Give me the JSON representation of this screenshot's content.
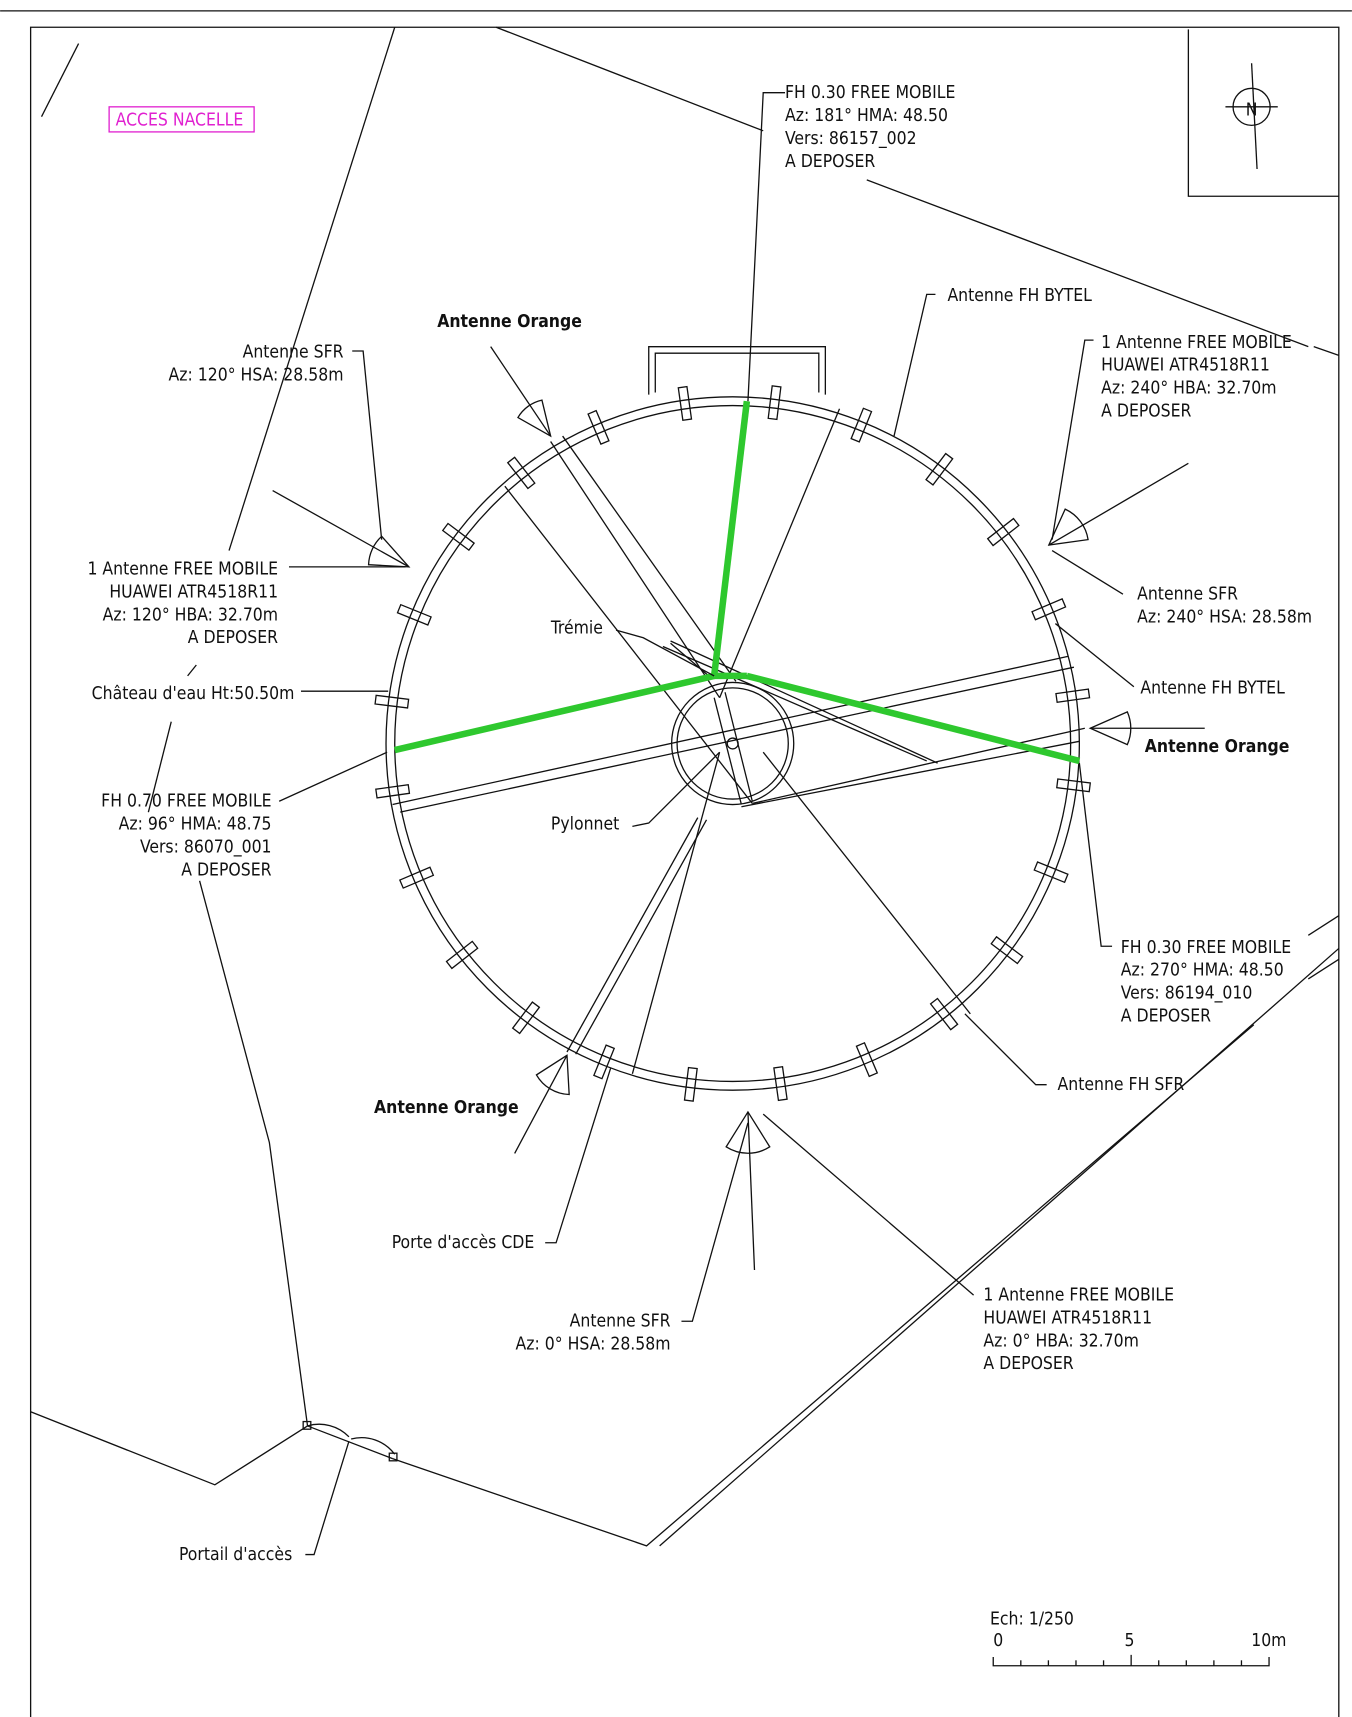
{
  "labels": [
    [
      "ACCES NACELLE"
    ],
    [
      "FH 0.30 FREE MOBILE",
      "Az: 181° HMA: 48.50",
      "Vers: 86157_002",
      "A DEPOSER"
    ],
    [
      "Antenne FH BYTEL"
    ],
    [
      "Antenne Orange"
    ],
    [
      "Antenne SFR",
      "Az: 120° HSA: 28.58m"
    ],
    [
      "1 Antenne FREE MOBILE",
      "HUAWEI ATR4518R11",
      "Az: 120° HBA: 32.70m",
      "A DEPOSER"
    ],
    [
      "1 Antenne FREE MOBILE",
      "HUAWEI ATR4518R11",
      "Az: 240° HBA: 32.70m",
      "A DEPOSER"
    ],
    [
      "Antenne SFR",
      "Az: 240° HSA: 28.58m"
    ],
    [
      "Trémie"
    ],
    [
      "Château d'eau Ht:50.50m"
    ],
    [
      "Antenne FH BYTEL"
    ],
    [
      "Antenne Orange"
    ],
    [
      "FH 0.70 FREE MOBILE",
      "Az: 96° HMA: 48.75",
      "Vers: 86070_001",
      "A DEPOSER"
    ],
    [
      "Pylonnet"
    ],
    [
      "FH 0.30 FREE MOBILE",
      "Az: 270° HMA: 48.50",
      "Vers: 86194_010",
      "A DEPOSER"
    ],
    [
      "Antenne FH SFR"
    ],
    [
      "Antenne Orange"
    ],
    [
      "Porte d'accès CDE"
    ],
    [
      "1 Antenne FREE MOBILE",
      "HUAWEI ATR4518R11",
      "Az: 0° HBA: 32.70m",
      "A DEPOSER"
    ],
    [
      "Antenne SFR",
      "Az: 0° HSA: 28.58m"
    ],
    [
      "Portail d'accès"
    ]
  ],
  "north": "N",
  "scale": {
    "title": "Ech: 1/250",
    "ticks": [
      "0",
      "5",
      "10m"
    ]
  }
}
